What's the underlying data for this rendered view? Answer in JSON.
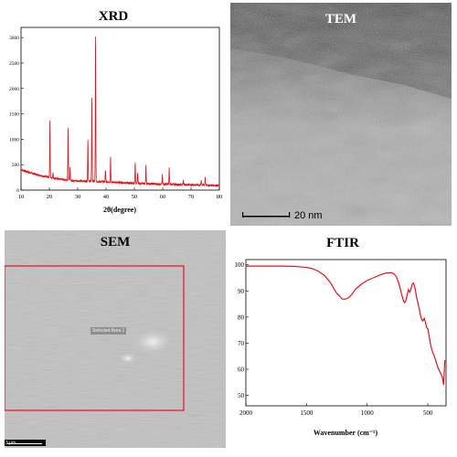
{
  "panels": {
    "xrd": {
      "title": "XRD"
    },
    "tem": {
      "title": "TEM",
      "scale_bar": "20 nm"
    },
    "sem": {
      "title": "SEM",
      "selection_label": "Selected Area 1",
      "scale_bar": "3 μm"
    },
    "ftir": {
      "title": "FTIR"
    }
  },
  "colors": {
    "line": "#e8101a",
    "selection": "#e8101a"
  },
  "chart_data": [
    {
      "type": "line",
      "title": "XRD",
      "xlabel": "2θ(degree)",
      "ylabel": "",
      "xlim": [
        10,
        80
      ],
      "ylim": [
        0,
        3200
      ],
      "xticks": [
        10,
        20,
        30,
        40,
        50,
        60,
        70,
        80
      ],
      "yticks": [
        0,
        500,
        1000,
        1500,
        2000,
        2500,
        3000
      ],
      "baseline": [
        [
          10,
          400
        ],
        [
          14,
          330
        ],
        [
          18,
          270
        ],
        [
          22,
          230
        ],
        [
          26,
          200
        ],
        [
          30,
          180
        ],
        [
          34,
          175
        ],
        [
          38,
          165
        ],
        [
          42,
          155
        ],
        [
          46,
          145
        ],
        [
          50,
          135
        ],
        [
          54,
          128
        ],
        [
          58,
          120
        ],
        [
          62,
          115
        ],
        [
          66,
          110
        ],
        [
          70,
          105
        ],
        [
          74,
          100
        ],
        [
          78,
          95
        ],
        [
          80,
          92
        ]
      ],
      "peaks": [
        [
          20.2,
          1350
        ],
        [
          21.3,
          350
        ],
        [
          26.6,
          1230
        ],
        [
          27.3,
          450
        ],
        [
          33.6,
          1000
        ],
        [
          35.0,
          1820
        ],
        [
          36.3,
          3000
        ],
        [
          39.8,
          400
        ],
        [
          41.6,
          650
        ],
        [
          50.3,
          550
        ],
        [
          51.2,
          350
        ],
        [
          54.1,
          480
        ],
        [
          59.9,
          300
        ],
        [
          62.3,
          430
        ],
        [
          67.3,
          190
        ],
        [
          73.6,
          200
        ],
        [
          75.0,
          260
        ]
      ]
    },
    {
      "type": "line",
      "title": "FTIR",
      "xlabel": "Wavenumber (cm⁻¹)",
      "ylabel": "",
      "xlim": [
        2000,
        350
      ],
      "ylim": [
        46,
        102
      ],
      "xticks": [
        2000,
        1500,
        1000,
        500
      ],
      "yticks": [
        50,
        60,
        70,
        80,
        90,
        100
      ],
      "x": [
        2000,
        1900,
        1800,
        1700,
        1600,
        1500,
        1450,
        1400,
        1350,
        1300,
        1270,
        1250,
        1230,
        1210,
        1190,
        1170,
        1150,
        1120,
        1100,
        1050,
        1000,
        950,
        900,
        850,
        800,
        780,
        760,
        740,
        720,
        700,
        690,
        680,
        670,
        660,
        650,
        640,
        630,
        620,
        610,
        600,
        590,
        580,
        570,
        560,
        550,
        540,
        530,
        520,
        510,
        500,
        490,
        480,
        470,
        460,
        450,
        440,
        430,
        420,
        410,
        400,
        390,
        380,
        370,
        360
      ],
      "y": [
        99.5,
        99.5,
        99.5,
        99.5,
        99.4,
        99.0,
        98.5,
        97.5,
        95.8,
        93.0,
        90.5,
        89.0,
        88.2,
        87.0,
        86.8,
        87.0,
        87.5,
        89.0,
        90.5,
        92.5,
        94.0,
        95.0,
        96.0,
        96.8,
        97.0,
        96.5,
        95.5,
        93.0,
        89.5,
        86.0,
        85.5,
        86.5,
        88.5,
        90.5,
        89.5,
        90.5,
        92.5,
        93.0,
        92.0,
        89.5,
        87.0,
        85.0,
        83.0,
        80.5,
        79.0,
        78.5,
        79.5,
        78.0,
        76.0,
        75.5,
        73.0,
        70.0,
        68.0,
        66.5,
        65.5,
        64.0,
        62.5,
        61.0,
        60.0,
        59.0,
        58.0,
        57.0,
        54.0,
        63.5
      ]
    }
  ]
}
